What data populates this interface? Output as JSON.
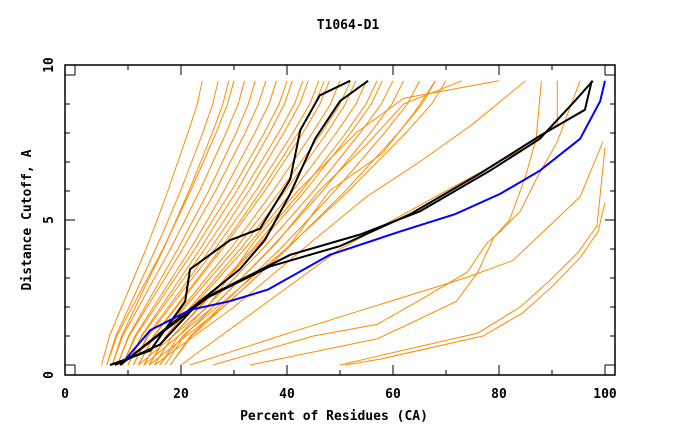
{
  "chart_data": {
    "type": "line",
    "title": "T1064-D1",
    "xlabel": "Percent of Residues (CA)",
    "ylabel": "Distance Cutoff, A",
    "xlim": [
      0,
      100
    ],
    "ylim": [
      0,
      10
    ],
    "xticks": [
      "0",
      "20",
      "40",
      "60",
      "80",
      "100"
    ],
    "yticks": [
      "0",
      "5",
      "10"
    ],
    "grid": false,
    "colors": {
      "models": "#ff8c00",
      "highlight": "#000000",
      "best": "#0000ff"
    },
    "band_cutoffs": [
      0,
      1,
      2,
      3,
      4,
      5,
      6,
      7,
      8,
      9,
      9.8
    ],
    "orange_band_series": [
      [
        5,
        6.5,
        8.8,
        11.1,
        13.4,
        15.5,
        17.5,
        19.4,
        21.3,
        23.1,
        24
      ],
      [
        6,
        7.7,
        10.2,
        12.7,
        15.2,
        17.6,
        19.9,
        22,
        24.1,
        26,
        27
      ],
      [
        6,
        7.9,
        10.8,
        13.7,
        16.6,
        19.2,
        21.8,
        24.2,
        26.6,
        28.8,
        30
      ],
      [
        7,
        8.8,
        11.4,
        14,
        16.7,
        19.1,
        21.5,
        23.7,
        25.9,
        27.9,
        29
      ],
      [
        7,
        9,
        12,
        15,
        18,
        20.8,
        23.5,
        26,
        28.5,
        30.8,
        32
      ],
      [
        8,
        10.1,
        13.2,
        16.3,
        19.4,
        22.3,
        25.2,
        27.8,
        30.4,
        32.7,
        34
      ],
      [
        8,
        10.2,
        13.6,
        17,
        20.3,
        23.4,
        26.5,
        29.3,
        32.1,
        34.6,
        36
      ],
      [
        9,
        11.3,
        14.8,
        18.3,
        21.8,
        25,
        28.1,
        31,
        33.9,
        36.6,
        38
      ],
      [
        9,
        11.5,
        15.2,
        18.9,
        22.6,
        26,
        29.5,
        32.6,
        35.7,
        38.5,
        40
      ],
      [
        10,
        12.5,
        16.2,
        19.9,
        23.6,
        27,
        30.5,
        33.6,
        36.7,
        39.5,
        41
      ],
      [
        10,
        12.6,
        16.6,
        20.6,
        24.5,
        28.2,
        31.8,
        35.1,
        38.4,
        41.4,
        43
      ],
      [
        11,
        13.6,
        17.6,
        21.6,
        25.5,
        29.2,
        32.8,
        36.1,
        39.4,
        42.4,
        44
      ],
      [
        11,
        13.8,
        18,
        22.2,
        26.4,
        30.3,
        34.1,
        37.6,
        41.1,
        44.3,
        46
      ],
      [
        12,
        14.8,
        19,
        23.2,
        27.4,
        31.3,
        35.1,
        38.6,
        42.1,
        45.3,
        47
      ],
      [
        12,
        14.9,
        19.2,
        23.5,
        27.8,
        31.8,
        35.8,
        39.4,
        43,
        46.2,
        48
      ],
      [
        13,
        16,
        20.4,
        24.8,
        29.3,
        33.4,
        37.4,
        41.1,
        44.8,
        48.2,
        50
      ],
      [
        13,
        16.1,
        20.8,
        25.5,
        30.2,
        34.5,
        38.7,
        42.6,
        46.5,
        50,
        52
      ],
      [
        14,
        17.1,
        21.8,
        26.5,
        31.2,
        35.5,
        39.7,
        43.6,
        47.5,
        51,
        53
      ],
      [
        14,
        17.3,
        22.2,
        27.1,
        32,
        36.6,
        41.1,
        45.2,
        49.3,
        53,
        55
      ],
      [
        15,
        18.4,
        23.4,
        28.4,
        33.5,
        38.1,
        42.7,
        46.9,
        51.1,
        54.9,
        57
      ],
      [
        15,
        18.4,
        23.6,
        28.8,
        33.9,
        38.7,
        43.4,
        47.7,
        52,
        55.9,
        58
      ],
      [
        16,
        19.5,
        24.8,
        30.1,
        35.4,
        40.2,
        45,
        49.4,
        53.8,
        57.8,
        60
      ],
      [
        17,
        20.6,
        26,
        31.4,
        36.8,
        41.8,
        46.7,
        51.2,
        55.7,
        59.8,
        62
      ],
      [
        18,
        21.8,
        27.4,
        33,
        38.7,
        43.9,
        49,
        53.7,
        58.4,
        62.7,
        65
      ],
      [
        18,
        22,
        28,
        34,
        40,
        45.5,
        51,
        56,
        61,
        65.5,
        68
      ],
      [
        16,
        20.3,
        26.8,
        33.3,
        39.8,
        45.7,
        51.6,
        57,
        62.4,
        67.3,
        70
      ]
    ],
    "orange_other_series": [
      [
        [
          21.7,
          0
        ],
        [
          42,
          1.2
        ],
        [
          73.6,
          3
        ],
        [
          82.6,
          3.6
        ],
        [
          95.3,
          5.8
        ],
        [
          99.6,
          7.7
        ]
      ],
      [
        [
          26,
          0
        ],
        [
          45,
          1
        ],
        [
          57,
          1.4
        ],
        [
          63.8,
          2.1
        ],
        [
          74,
          3.2
        ],
        [
          77.7,
          4.2
        ],
        [
          80.2,
          4.6
        ],
        [
          84,
          5.3
        ],
        [
          87,
          6.4
        ],
        [
          91,
          7.7
        ],
        [
          95.3,
          9.8
        ]
      ],
      [
        [
          33,
          0
        ],
        [
          57,
          0.9
        ],
        [
          64,
          1.5
        ],
        [
          72,
          2.2
        ],
        [
          76,
          3.2
        ],
        [
          79,
          4.4
        ],
        [
          82,
          5
        ],
        [
          85,
          6.5
        ],
        [
          87,
          7.8
        ],
        [
          88,
          9.8
        ]
      ],
      [
        [
          51,
          0
        ],
        [
          57.5,
          0.2
        ],
        [
          77,
          1
        ],
        [
          84.5,
          1.8
        ],
        [
          90,
          2.7
        ],
        [
          95.3,
          3.7
        ],
        [
          98.7,
          4.6
        ],
        [
          100,
          5.6
        ]
      ],
      [
        [
          50,
          0
        ],
        [
          57,
          0.3
        ],
        [
          76,
          1.1
        ],
        [
          84,
          2
        ],
        [
          89.5,
          2.9
        ],
        [
          95,
          3.9
        ],
        [
          98.5,
          4.8
        ],
        [
          100,
          7.5
        ]
      ],
      [
        [
          20,
          0
        ],
        [
          35,
          2
        ],
        [
          50,
          4
        ],
        [
          65,
          5.5
        ],
        [
          75,
          6.5
        ],
        [
          85,
          7.5
        ],
        [
          91,
          8.3
        ],
        [
          91,
          9.8
        ]
      ],
      [
        [
          15,
          0
        ],
        [
          30,
          2
        ],
        [
          45,
          4.3
        ],
        [
          55,
          5.8
        ],
        [
          65,
          7
        ],
        [
          75,
          8.3
        ],
        [
          85,
          9.8
        ]
      ],
      [
        [
          14,
          0
        ],
        [
          28,
          2
        ],
        [
          40,
          4
        ],
        [
          48,
          6
        ],
        [
          58,
          7.3
        ],
        [
          64,
          8.7
        ],
        [
          68,
          9.8
        ]
      ],
      [
        [
          13,
          0
        ],
        [
          26,
          2
        ],
        [
          38,
          4.2
        ],
        [
          46,
          6
        ],
        [
          55,
          7.6
        ],
        [
          62,
          9
        ],
        [
          73,
          9.8
        ]
      ],
      [
        [
          12,
          0
        ],
        [
          25,
          2
        ],
        [
          34,
          4.3
        ],
        [
          42,
          6
        ],
        [
          53,
          8
        ],
        [
          62,
          9.2
        ],
        [
          80,
          9.8
        ]
      ]
    ],
    "black_series": [
      [
        [
          6.6,
          0
        ],
        [
          14.2,
          0.5
        ],
        [
          20.8,
          2.2
        ],
        [
          21.7,
          3.3
        ],
        [
          29.2,
          4.3
        ],
        [
          34.9,
          4.7
        ],
        [
          40.6,
          6.4
        ],
        [
          42.5,
          8.1
        ],
        [
          46.2,
          9.3
        ],
        [
          51.9,
          9.8
        ]
      ],
      [
        [
          7.5,
          0
        ],
        [
          16,
          0.7
        ],
        [
          23.6,
          2.2
        ],
        [
          31.1,
          3.3
        ],
        [
          35.8,
          4.3
        ],
        [
          40.6,
          5.9
        ],
        [
          45.3,
          7.8
        ],
        [
          50,
          9.1
        ],
        [
          55.3,
          9.8
        ]
      ],
      [
        [
          8.5,
          0
        ],
        [
          23.6,
          2.2
        ],
        [
          36.8,
          3.4
        ],
        [
          50,
          4.1
        ],
        [
          63.2,
          5.2
        ],
        [
          76.4,
          6.6
        ],
        [
          87.7,
          7.9
        ],
        [
          96.2,
          8.8
        ],
        [
          97.5,
          9.8
        ]
      ],
      [
        [
          8.5,
          0
        ],
        [
          25.5,
          2.4
        ],
        [
          40.6,
          3.8
        ],
        [
          53.8,
          4.5
        ],
        [
          65.1,
          5.3
        ],
        [
          78.3,
          6.7
        ],
        [
          87.7,
          7.8
        ],
        [
          94.3,
          9.1
        ],
        [
          97.7,
          9.8
        ]
      ]
    ],
    "blue_series": [
      [
        9.4,
        0.17
      ],
      [
        14.2,
        1.2
      ],
      [
        21.7,
        1.9
      ],
      [
        29.2,
        2.2
      ],
      [
        36.4,
        2.6
      ],
      [
        48.1,
        3.8
      ],
      [
        61.3,
        4.6
      ],
      [
        71.7,
        5.2
      ],
      [
        80.2,
        5.9
      ],
      [
        87.7,
        6.7
      ],
      [
        95.3,
        7.8
      ],
      [
        99.1,
        9.1
      ],
      [
        100,
        9.8
      ]
    ]
  }
}
